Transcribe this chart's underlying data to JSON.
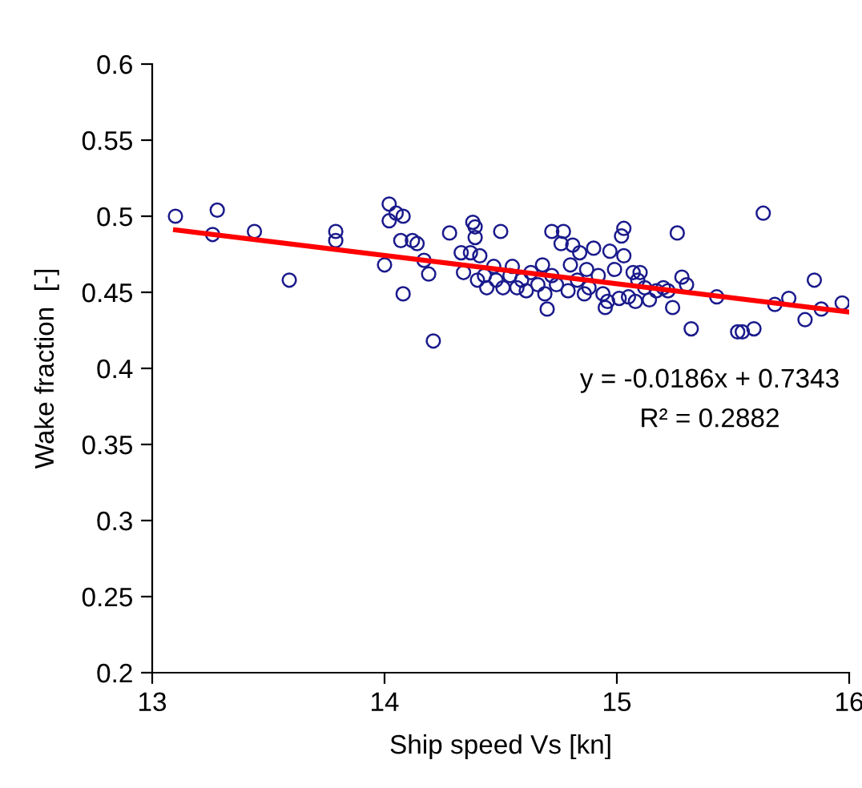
{
  "chart_data": {
    "type": "scatter",
    "xlabel": "Ship speed Vs [kn]",
    "ylabel": "Wake fraction  [-]",
    "xlim": [
      13,
      16
    ],
    "xticks": [
      13,
      14,
      15,
      16
    ],
    "ylim": [
      0.2,
      0.6
    ],
    "yticks": [
      0.2,
      0.25,
      0.3,
      0.35,
      0.4,
      0.45,
      0.5,
      0.55,
      0.6
    ],
    "grid": false,
    "legend": false,
    "annotations": [
      "y = -0.0186x + 0.7343",
      "R² = 0.2882"
    ],
    "series": [
      {
        "color": "#1a1a8c",
        "marker": "circle",
        "x": [
          13.1,
          13.26,
          13.28,
          13.44,
          13.59,
          13.79,
          13.79,
          14.0,
          14.02,
          14.02,
          14.05,
          14.07,
          14.08,
          14.08,
          14.12,
          14.14,
          14.17,
          14.21,
          14.19,
          14.28,
          14.33,
          14.34,
          14.38,
          14.39,
          14.39,
          14.37,
          14.41,
          14.4,
          14.43,
          14.44,
          14.47,
          14.48,
          14.5,
          14.51,
          14.54,
          14.55,
          14.57,
          14.59,
          14.61,
          14.63,
          14.66,
          14.68,
          14.69,
          14.72,
          14.72,
          14.7,
          14.74,
          14.76,
          14.77,
          14.79,
          14.8,
          14.81,
          14.83,
          14.84,
          14.86,
          14.87,
          14.88,
          14.9,
          14.92,
          14.94,
          14.95,
          14.96,
          14.97,
          14.99,
          15.01,
          15.02,
          15.03,
          15.03,
          15.05,
          15.07,
          15.08,
          15.09,
          15.1,
          15.12,
          15.14,
          15.17,
          15.2,
          15.22,
          15.24,
          15.26,
          15.28,
          15.3,
          15.32,
          15.43,
          15.52,
          15.54,
          15.59,
          15.63,
          15.68,
          15.74,
          15.81,
          15.85,
          15.88,
          15.97
        ],
        "values": [
          0.5,
          0.488,
          0.504,
          0.49,
          0.458,
          0.49,
          0.484,
          0.468,
          0.508,
          0.497,
          0.502,
          0.484,
          0.449,
          0.5,
          0.484,
          0.482,
          0.471,
          0.418,
          0.462,
          0.489,
          0.476,
          0.463,
          0.496,
          0.493,
          0.486,
          0.476,
          0.474,
          0.458,
          0.461,
          0.453,
          0.467,
          0.458,
          0.49,
          0.453,
          0.461,
          0.467,
          0.453,
          0.458,
          0.451,
          0.463,
          0.455,
          0.468,
          0.449,
          0.49,
          0.461,
          0.439,
          0.455,
          0.482,
          0.49,
          0.451,
          0.468,
          0.481,
          0.458,
          0.476,
          0.449,
          0.465,
          0.453,
          0.479,
          0.461,
          0.449,
          0.44,
          0.444,
          0.477,
          0.465,
          0.446,
          0.487,
          0.492,
          0.474,
          0.447,
          0.463,
          0.444,
          0.458,
          0.463,
          0.453,
          0.445,
          0.451,
          0.453,
          0.451,
          0.44,
          0.489,
          0.46,
          0.455,
          0.426,
          0.447,
          0.424,
          0.424,
          0.426,
          0.502,
          0.442,
          0.446,
          0.432,
          0.458,
          0.439,
          0.443
        ]
      },
      {
        "type": "line",
        "color": "#ff0000",
        "line_style": "solid",
        "marker": "none",
        "x": [
          13.1,
          16
        ],
        "values": [
          0.491,
          0.437
        ]
      }
    ]
  }
}
